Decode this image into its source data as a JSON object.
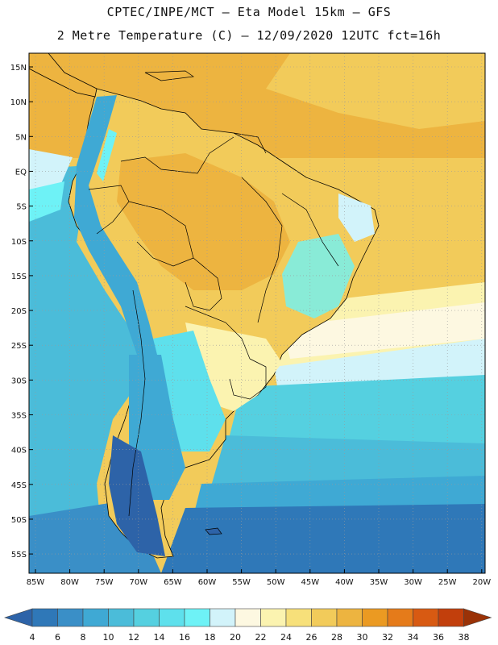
{
  "header": {
    "line1": "CPTEC/INPE/MCT –  Eta Model 15km – GFS",
    "line2": "2 Metre Temperature (C) – 12/09/2020 12UTC fct=16h"
  },
  "map": {
    "lat_labels": [
      "15N",
      "10N",
      "5N",
      "EQ",
      "5S",
      "10S",
      "15S",
      "20S",
      "25S",
      "30S",
      "35S",
      "40S",
      "45S",
      "50S",
      "55S"
    ],
    "lon_labels": [
      "85W",
      "80W",
      "75W",
      "70W",
      "65W",
      "60W",
      "55W",
      "50W",
      "45W",
      "40W",
      "35W",
      "30W",
      "25W",
      "20W"
    ]
  },
  "colorbar": {
    "labels": [
      "4",
      "6",
      "8",
      "10",
      "12",
      "14",
      "16",
      "18",
      "20",
      "22",
      "24",
      "26",
      "28",
      "30",
      "32",
      "34",
      "36",
      "38"
    ],
    "colors": [
      "#2d63a8",
      "#2f78b8",
      "#3a8fc7",
      "#3fa9d4",
      "#4bbcd9",
      "#55d0e0",
      "#5ee0ec",
      "#6ef2f6",
      "#d2f3fa",
      "#fdf8e1",
      "#fbf3b0",
      "#f7e07a",
      "#f2cb5a",
      "#edb440",
      "#eb9a22",
      "#e57b1a",
      "#d85a12",
      "#c23f0c",
      "#9a3207"
    ]
  }
}
